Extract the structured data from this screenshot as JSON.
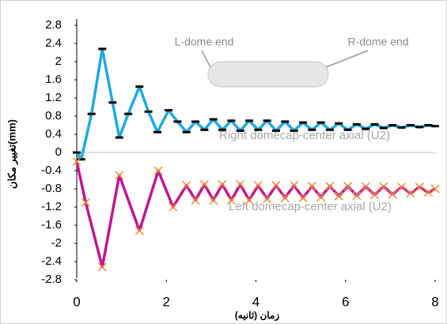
{
  "chart_data": {
    "type": "line",
    "x_label": "زمان (ثانیه)",
    "y_label": "تغییر مکان(mm)",
    "annotations": [
      "L-dome end",
      "R-dome end",
      "Right domecap-center axial (U2)",
      "Left domecap-center axial (U2)"
    ],
    "xlim": [
      0,
      8
    ],
    "xticks": [
      0,
      2,
      4,
      6,
      8
    ],
    "ylim": [
      -2.8,
      2.8
    ],
    "yticks": [
      2.8,
      2.4,
      2,
      1.6,
      1.2,
      0.8,
      0.4,
      0,
      -0.4,
      -0.8,
      -1.2,
      -1.6,
      -2,
      -2.4,
      -2.8
    ],
    "series": [
      {
        "color": "#1fa9e1",
        "marker": "dash",
        "marker_color": "#000000",
        "x": [
          0,
          0.1,
          0.33,
          0.57,
          0.8,
          0.95,
          1.15,
          1.4,
          1.6,
          1.8,
          2.05,
          2.25,
          2.45,
          2.65,
          2.85,
          3.05,
          3.25,
          3.45,
          3.65,
          3.85,
          4.05,
          4.25,
          4.45,
          4.65,
          4.85,
          5.05,
          5.25,
          5.45,
          5.65,
          5.85,
          6.05,
          6.25,
          6.45,
          6.65,
          6.85,
          7.05,
          7.25,
          7.45,
          7.65,
          7.85,
          8.0
        ],
        "values": [
          0,
          -0.15,
          0.85,
          2.28,
          1.1,
          0.33,
          0.85,
          1.45,
          0.9,
          0.45,
          0.93,
          0.68,
          0.45,
          0.68,
          0.5,
          0.73,
          0.5,
          0.7,
          0.48,
          0.7,
          0.5,
          0.7,
          0.48,
          0.68,
          0.48,
          0.66,
          0.5,
          0.66,
          0.5,
          0.64,
          0.5,
          0.62,
          0.52,
          0.62,
          0.54,
          0.6,
          0.55,
          0.6,
          0.56,
          0.6,
          0.58
        ]
      },
      {
        "color": "#c0168f",
        "marker": "x",
        "marker_color": "#f08a3c",
        "x": [
          0,
          0.2,
          0.57,
          0.95,
          1.4,
          1.82,
          2.15,
          2.45,
          2.65,
          2.85,
          3.05,
          3.25,
          3.45,
          3.65,
          3.85,
          4.05,
          4.25,
          4.45,
          4.65,
          4.85,
          5.05,
          5.25,
          5.45,
          5.65,
          5.85,
          6.05,
          6.25,
          6.45,
          6.65,
          6.85,
          7.05,
          7.25,
          7.45,
          7.65,
          7.85,
          8.0
        ],
        "values": [
          -0.2,
          -1.1,
          -2.52,
          -0.5,
          -1.72,
          -0.4,
          -1.2,
          -0.72,
          -1.05,
          -0.7,
          -1.05,
          -0.7,
          -1.05,
          -0.7,
          -1.05,
          -0.72,
          -1.02,
          -0.72,
          -1.0,
          -0.72,
          -1.0,
          -0.74,
          -0.98,
          -0.74,
          -0.96,
          -0.74,
          -0.95,
          -0.75,
          -0.93,
          -0.75,
          -0.92,
          -0.76,
          -0.9,
          -0.76,
          -0.88,
          -0.8
        ]
      }
    ]
  }
}
